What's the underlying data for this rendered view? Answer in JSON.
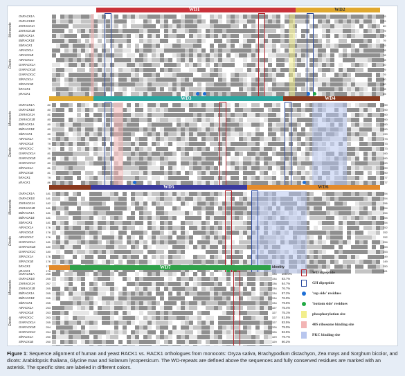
{
  "species": [
    "OsRACK1A",
    "OsRACK1B",
    "ZmRACK1A",
    "ZmRACK1B",
    "BdRACK1A",
    "BdRACK1B",
    "SbRACK1",
    "AtRACK1A",
    "AtRACK1B",
    "AtRACK1C",
    "GmRACK1A",
    "GmRACK1B",
    "GmRACK1C",
    "SlRACK1A",
    "SlRACK1B",
    "hRACK1",
    "yRACK1"
  ],
  "groups": {
    "monocots": "Monocots",
    "dicots": "Dicots"
  },
  "blocks": [
    {
      "wd": [
        {
          "label": "WD1"
        },
        {
          "label": "WD2"
        }
      ],
      "ends": [
        "79",
        "79",
        "80",
        "79",
        "79",
        "79",
        "79",
        "78",
        "78",
        "78",
        "80",
        "79",
        "79",
        "80",
        "80",
        "78",
        "85"
      ]
    },
    {
      "wd": [
        {
          "label": "WD3"
        },
        {
          "label": "WD4"
        }
      ],
      "starts": [
        "80",
        "80",
        "81",
        "80",
        "80",
        "80",
        "80",
        "79",
        "79",
        "79",
        "81",
        "80",
        "80",
        "81",
        "81",
        "79",
        "86"
      ],
      "ends": [
        "190",
        "190",
        "190",
        "190",
        "190",
        "190",
        "190",
        "173",
        "173",
        "173",
        "190",
        "190",
        "190",
        "190",
        "190",
        "177",
        "177"
      ]
    },
    {
      "wd": [
        {
          "label": "WD5"
        },
        {
          "label": "WD6"
        }
      ],
      "starts": [
        "181",
        "181",
        "182",
        "181",
        "181",
        "181",
        "181",
        "176",
        "176",
        "176",
        "181",
        "180",
        "180",
        "176",
        "176",
        "178",
        "178"
      ],
      "ends": [
        "254",
        "254",
        "256",
        "254",
        "254",
        "254",
        "254",
        "252",
        "252",
        "252",
        "254",
        "253",
        "253",
        "249",
        "249",
        "250",
        "261"
      ]
    },
    {
      "wd": [
        {
          "label": "WD7"
        }
      ],
      "starts": [
        "255",
        "255",
        "257",
        "255",
        "255",
        "255",
        "255",
        "253",
        "253",
        "253",
        "255",
        "254",
        "254",
        "250",
        "250",
        "251",
        "262"
      ],
      "ends": [
        "334",
        "334",
        "336",
        "334",
        "334",
        "334",
        "334",
        "327",
        "327",
        "327",
        "327",
        "326",
        "326",
        "329",
        "329",
        "317",
        "319"
      ]
    }
  ],
  "identity": {
    "header": "identity",
    "values": [
      "100.0%",
      "83.7%",
      "84.7%",
      "76.7%",
      "87.2%",
      "76.0%",
      "79.6%",
      "75.4%",
      "75.1%",
      "81.5%",
      "83.5%",
      "79.0%",
      "82.5%",
      "79.7%",
      "80.2%",
      "61.4%",
      "61.5%"
    ]
  },
  "consensus": "*",
  "legend": [
    {
      "label": "WD dipeptide",
      "kind": "box",
      "color": "#b2222a"
    },
    {
      "label": "GH dipeptide",
      "kind": "box",
      "color": "#2a4aa0"
    },
    {
      "label": "'top side' residues",
      "kind": "dot",
      "color": "#1e6fd6"
    },
    {
      "label": "'bottom side' residues",
      "kind": "dot",
      "color": "#22aa44"
    },
    {
      "label": "phosphorylation site",
      "kind": "fill",
      "color": "#f2ee8c"
    },
    {
      "label": "40S ribosome binding site",
      "kind": "fill",
      "color": "#f2b4b4"
    },
    {
      "label": "PKC binding site",
      "kind": "fill",
      "color": "#b8c6ee"
    }
  ],
  "colors": {
    "wd1": "#c9323a",
    "wd2": "#e0a82e",
    "wd3": "#2aa7a0",
    "wd4": "#8a3a1e",
    "wd5": "#3a3a9e",
    "wd6": "#e38a2a",
    "wd7": "#2fa24a"
  },
  "caption": {
    "label": "Figure 1",
    "text": ": Sequence alignment of human and yeast RACK1 vs. RACK1 orthologues from monocots: Oryza sativa, Brachypodium distachyon, Zea mays and Sorghum bicolor, and dicots: Arabidopsis thaliana, Glycine max and Solanum lycopersicum. The WD-repeats are defined above the sequences and fully conserved residues are marked with an asterisk. The specific sites are labeled in different colors."
  }
}
